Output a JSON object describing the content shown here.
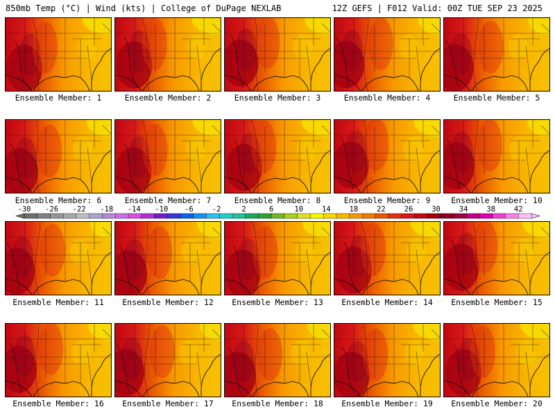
{
  "header": {
    "left": "850mb Temp (°C) | Wind (kts) | College of DuPage NEXLAB",
    "right": "12Z GEFS | F012 Valid: 00Z TUE SEP 23 2025"
  },
  "member_label_prefix": "Ensemble Member:",
  "members": [
    "1",
    "2",
    "3",
    "4",
    "5",
    "6",
    "7",
    "8",
    "9",
    "10",
    "11",
    "12",
    "13",
    "14",
    "15",
    "16",
    "17",
    "18",
    "19",
    "20"
  ],
  "colorbar": {
    "ticks": [
      "-30",
      "-26",
      "-22",
      "-18",
      "-14",
      "-10",
      "-6",
      "-2",
      "2",
      "6",
      "10",
      "14",
      "18",
      "22",
      "26",
      "30",
      "34",
      "38",
      "42"
    ],
    "colors": [
      "#6e6e6e",
      "#808080",
      "#959595",
      "#a8a8a8",
      "#bfbfbf",
      "#a6a6c8",
      "#b488d4",
      "#c86ee6",
      "#d850ec",
      "#b030d8",
      "#7020c8",
      "#3838d8",
      "#1060e8",
      "#1890f0",
      "#30c0f0",
      "#20d0c8",
      "#20c098",
      "#18a860",
      "#30a030",
      "#70b828",
      "#a8d020",
      "#e0e020",
      "#f8f800",
      "#f8d800",
      "#f8b800",
      "#f89800",
      "#f07800",
      "#e85800",
      "#e03010",
      "#d81818",
      "#c00810",
      "#a00010",
      "#880020",
      "#a00040",
      "#c00080",
      "#e000b0",
      "#f040d0",
      "#f880e8",
      "#ffc0f8"
    ]
  }
}
